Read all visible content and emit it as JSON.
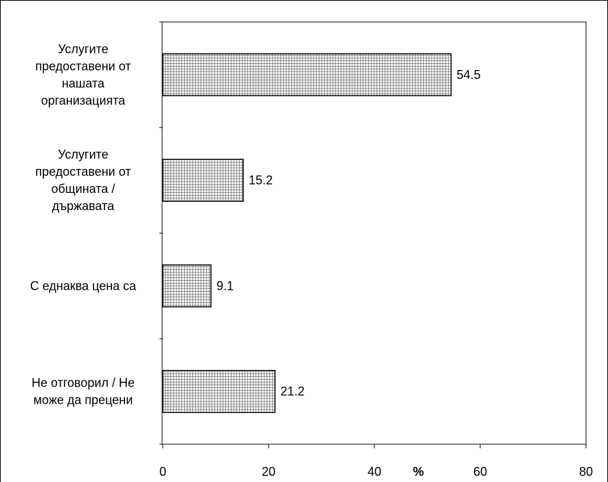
{
  "chart_data": {
    "type": "bar",
    "orientation": "horizontal",
    "categories": [
      [
        "Услугите",
        "предоставени от",
        "нашата",
        "организацията"
      ],
      [
        "Услугите",
        "предоставени от",
        "общината /",
        "държавата"
      ],
      [
        "С еднаква цена са"
      ],
      [
        "Не отговорил / Не",
        "може да прецени"
      ]
    ],
    "values": [
      54.5,
      15.2,
      9.1,
      21.2
    ],
    "value_labels": [
      "54.5",
      "15.2",
      "9.1",
      "21.2"
    ],
    "xlim": [
      0,
      80
    ],
    "xticks": [
      0,
      20,
      40,
      60,
      80
    ],
    "xtick_labels": [
      "0",
      "20",
      "40",
      "60",
      "80"
    ],
    "xlabel": "%",
    "grid": false,
    "bar_fill": "crosshatch",
    "bar_color": "#000000"
  }
}
